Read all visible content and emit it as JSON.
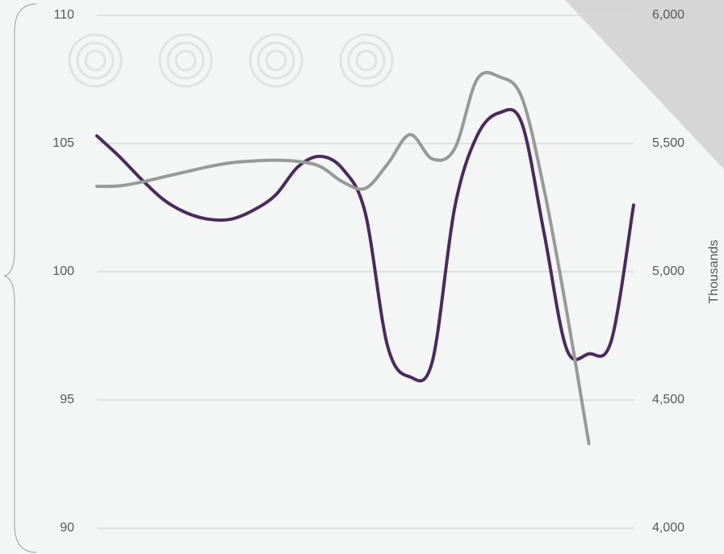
{
  "chart_data": {
    "type": "line",
    "categories": [
      null,
      null,
      null,
      null,
      null,
      null,
      null,
      null,
      null,
      null,
      null,
      null,
      null,
      null,
      null,
      null,
      null,
      null,
      null,
      null,
      null,
      null,
      null,
      null,
      null
    ],
    "series": [
      {
        "color": "#4b2b5e",
        "values": [
          105.3,
          104.5,
          103.6,
          102.8,
          102.3,
          102.05,
          102.05,
          102.4,
          103.0,
          104.1,
          104.5,
          104.0,
          102.3,
          97.1,
          95.9,
          96.5,
          102.5,
          105.3,
          106.2,
          105.8,
          101.5,
          97.0,
          96.8,
          97.3,
          102.6
        ]
      },
      {
        "color": "#999999",
        "axis": "y2",
        "values": [
          5333,
          5335,
          5350,
          5370,
          5390,
          5410,
          5425,
          5432,
          5435,
          5430,
          5410,
          5350,
          5325,
          5420,
          5535,
          5440,
          5480,
          5750,
          5760,
          5680,
          5320,
          4850,
          4330,
          null,
          null
        ]
      }
    ],
    "ylim": [
      90,
      110
    ],
    "yticks": [
      90,
      95,
      100,
      105,
      110
    ],
    "y2lim": [
      4000,
      6000
    ],
    "y2ticks": [
      {
        "value": 4000,
        "label": "4,000"
      },
      {
        "value": 4500,
        "label": "4,500"
      },
      {
        "value": 5000,
        "label": "5,000"
      },
      {
        "value": 5500,
        "label": "5,500"
      },
      {
        "value": 6000,
        "label": "6,000"
      }
    ],
    "y2label": "Thousands",
    "grid": true
  }
}
